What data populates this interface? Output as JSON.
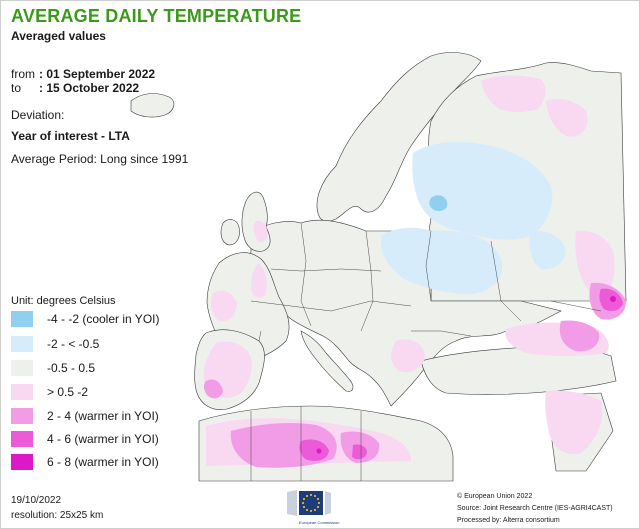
{
  "header": {
    "title": "AVERAGE DAILY TEMPERATURE",
    "subtitle": "Averaged values"
  },
  "period": {
    "from_label": "from",
    "from_value": ": 01 September 2022",
    "to_label": "to",
    "to_value": ": 15 October 2022"
  },
  "deviation": {
    "label": "Deviation:",
    "comparison": "Year of interest - LTA",
    "average_period": "Average Period: Long since 1991"
  },
  "legend": {
    "unit": "Unit: degrees Celsius",
    "items": [
      {
        "label": "-4 - -2 (cooler in YOI)",
        "color": "#8fd0f0"
      },
      {
        "label": "-2 - < -0.5",
        "color": "#d6ecfa"
      },
      {
        "label": "-0.5 - 0.5",
        "color": "#eef0ec"
      },
      {
        "label": "> 0.5 -2",
        "color": "#f9d8f2"
      },
      {
        "label": "2 - 4 (warmer in YOI)",
        "color": "#f29be6"
      },
      {
        "label": "4 - 6 (warmer in YOI)",
        "color": "#ec5ad8"
      },
      {
        "label": "6 - 8 (warmer in YOI)",
        "color": "#dc18c8"
      }
    ]
  },
  "footer": {
    "date": "19/10/2022",
    "resolution": "resolution: 25x25 km",
    "copyright": "© European Union 2022",
    "source": "Source: Joint Research Centre (IES-AGRI4CAST)",
    "processed": "Processed by: Alterra consortium",
    "logo_caption": "European Commission"
  },
  "colors": {
    "title": "#3a9a1a",
    "sea": "#ffffff",
    "borders": "#333333",
    "logo_blue": "#1f3c7a",
    "logo_stars": "#f6d31f"
  }
}
